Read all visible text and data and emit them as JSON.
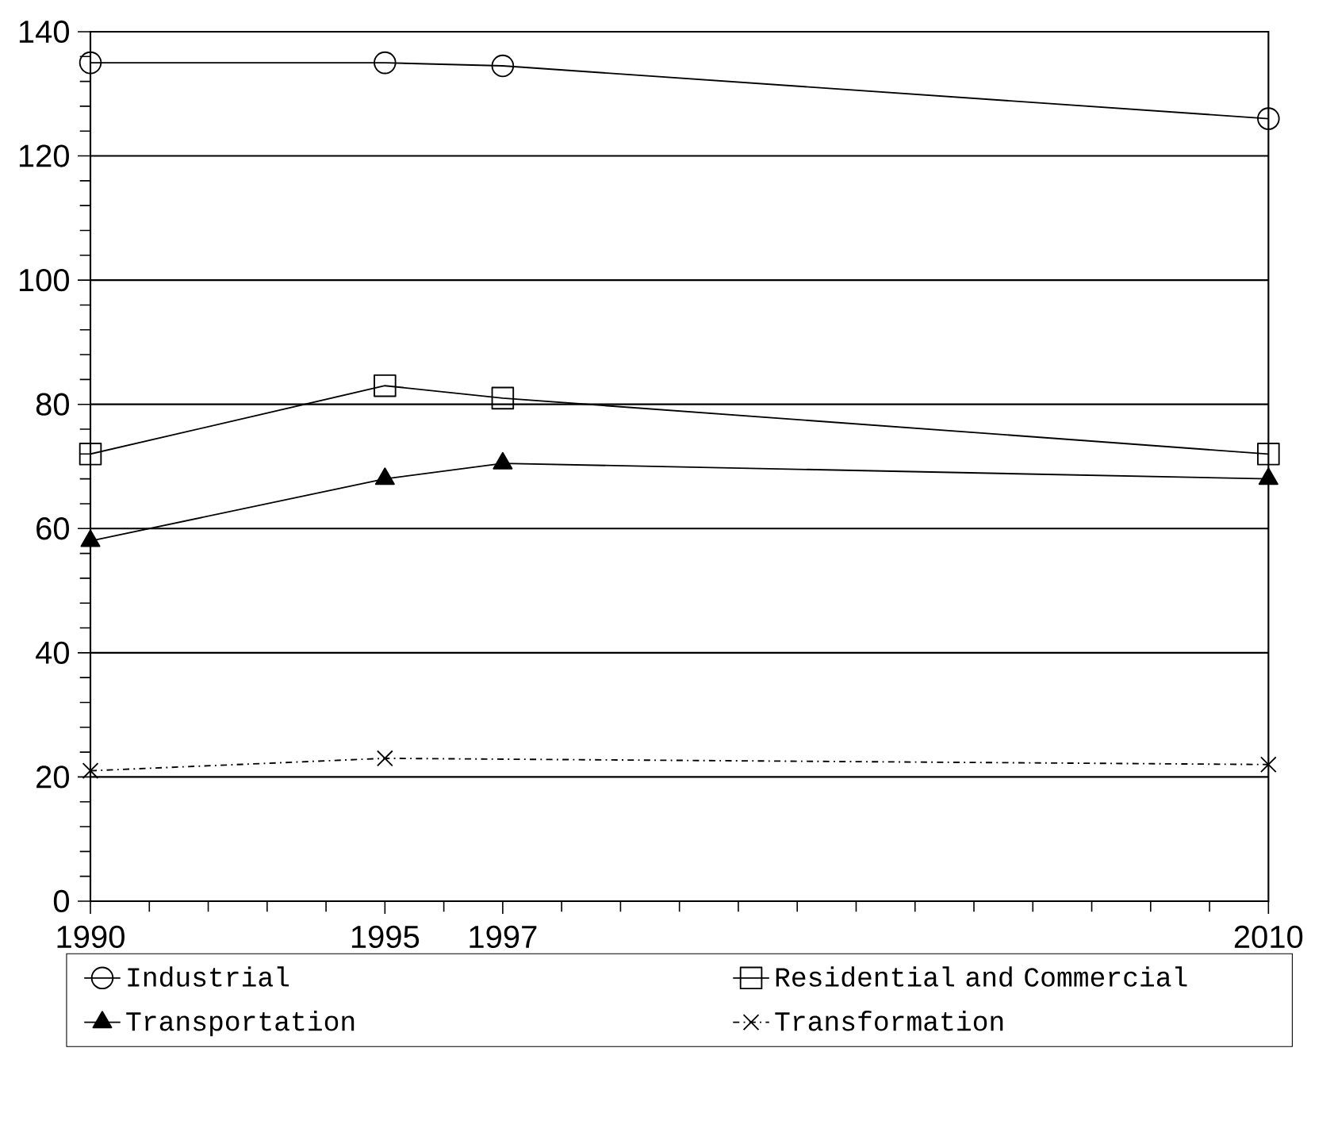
{
  "chart_data": {
    "type": "line",
    "x": [
      1990,
      1995,
      1997,
      2010
    ],
    "xlim": [
      1990,
      2010
    ],
    "xticks": [
      1990,
      {
        "value": 1991,
        "label": null
      },
      {
        "value": 1992,
        "label": null
      },
      {
        "value": 1993,
        "label": null
      },
      {
        "value": 1994,
        "label": null
      },
      1995,
      {
        "value": 1996,
        "label": null
      },
      1997,
      {
        "value": 1998,
        "label": null
      },
      {
        "value": 1999,
        "label": null
      },
      {
        "value": 2000,
        "label": null
      },
      {
        "value": 2001,
        "label": null
      },
      {
        "value": 2002,
        "label": null
      },
      {
        "value": 2003,
        "label": null
      },
      {
        "value": 2004,
        "label": null
      },
      {
        "value": 2005,
        "label": null
      },
      {
        "value": 2006,
        "label": null
      },
      {
        "value": 2007,
        "label": null
      },
      {
        "value": 2008,
        "label": null
      },
      {
        "value": 2009,
        "label": null
      },
      2010
    ],
    "ylim": [
      0,
      140
    ],
    "yticks": [
      0,
      {
        "value": 4,
        "label": null
      },
      {
        "value": 8,
        "label": null
      },
      {
        "value": 12,
        "label": null
      },
      {
        "value": 16,
        "label": null
      },
      20,
      {
        "value": 24,
        "label": null
      },
      {
        "value": 28,
        "label": null
      },
      {
        "value": 32,
        "label": null
      },
      {
        "value": 36,
        "label": null
      },
      40,
      {
        "value": 44,
        "label": null
      },
      {
        "value": 48,
        "label": null
      },
      {
        "value": 52,
        "label": null
      },
      {
        "value": 56,
        "label": null
      },
      60,
      {
        "value": 64,
        "label": null
      },
      {
        "value": 68,
        "label": null
      },
      {
        "value": 72,
        "label": null
      },
      {
        "value": 76,
        "label": null
      },
      80,
      {
        "value": 84,
        "label": null
      },
      {
        "value": 88,
        "label": null
      },
      {
        "value": 92,
        "label": null
      },
      {
        "value": 96,
        "label": null
      },
      100,
      {
        "value": 104,
        "label": null
      },
      {
        "value": 108,
        "label": null
      },
      {
        "value": 112,
        "label": null
      },
      {
        "value": 116,
        "label": null
      },
      120,
      {
        "value": 124,
        "label": null
      },
      {
        "value": 128,
        "label": null
      },
      {
        "value": 132,
        "label": null
      },
      {
        "value": 136,
        "label": null
      },
      140
    ],
    "grid": "y",
    "legend": "bottom",
    "series": [
      {
        "name": "Industrial",
        "color": "#000000",
        "marker": "circle",
        "line_style": "solid",
        "values": [
          135,
          135,
          134.5,
          126
        ]
      },
      {
        "name": "Residential and Commercial",
        "color": "#000000",
        "marker": "square",
        "line_style": "solid",
        "values": [
          72,
          83,
          81,
          72
        ]
      },
      {
        "name": "Transportation",
        "color": "#000000",
        "marker": "triangle",
        "line_style": "solid",
        "values": [
          58,
          68,
          70.5,
          68
        ]
      },
      {
        "name": "Transformation",
        "color": "#000000",
        "marker": "cross",
        "line_style": "dashed",
        "x": [
          1990,
          1995,
          2010
        ],
        "values": [
          21,
          23,
          22
        ]
      }
    ]
  }
}
